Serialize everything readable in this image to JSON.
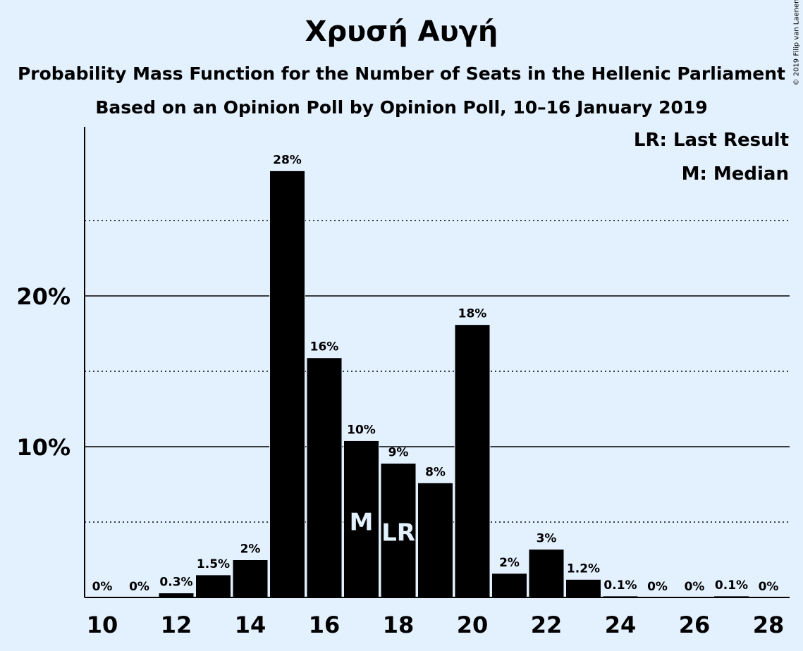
{
  "chart_data": {
    "type": "bar",
    "title": "Χρυσή Αυγή",
    "subtitle": "Probability Mass Function for the Number of Seats in the Hellenic Parliament",
    "subtitle2": "Based on an Opinion Poll by Opinion Poll, 10–16 January 2019",
    "copyright": "© 2019 Filip van Laenen",
    "legend": {
      "lr": "LR: Last Result",
      "m": "M: Median"
    },
    "x": [
      10,
      11,
      12,
      13,
      14,
      15,
      16,
      17,
      18,
      19,
      20,
      21,
      22,
      23,
      24,
      25,
      26,
      27,
      28
    ],
    "values": [
      0,
      0,
      0.3,
      1.5,
      2.5,
      28.3,
      15.9,
      10.4,
      8.9,
      7.6,
      18.1,
      1.6,
      3.2,
      1.2,
      0.1,
      0,
      0,
      0.1,
      0
    ],
    "labels": [
      "0%",
      "0%",
      "0.3%",
      "1.5%",
      "2%",
      "28%",
      "16%",
      "10%",
      "9%",
      "8%",
      "18%",
      "2%",
      "3%",
      "1.2%",
      "0.1%",
      "0%",
      "0%",
      "0.1%",
      "0%"
    ],
    "x_ticks": [
      10,
      12,
      14,
      16,
      18,
      20,
      22,
      24,
      26,
      28
    ],
    "y_ticks": [
      {
        "value": 10,
        "label": "10%"
      },
      {
        "value": 20,
        "label": "20%"
      }
    ],
    "minor_gridlines": [
      5,
      15,
      25
    ],
    "ylim": [
      0,
      31
    ],
    "median_seat": 17,
    "median_marker": "M",
    "last_result_seat": 18,
    "last_result_marker": "LR",
    "colors": {
      "bar": "#000000",
      "background": "#E3F0FD",
      "marker_text": "#E3F0FD"
    },
    "grid": true,
    "legend_position": "top-right"
  }
}
